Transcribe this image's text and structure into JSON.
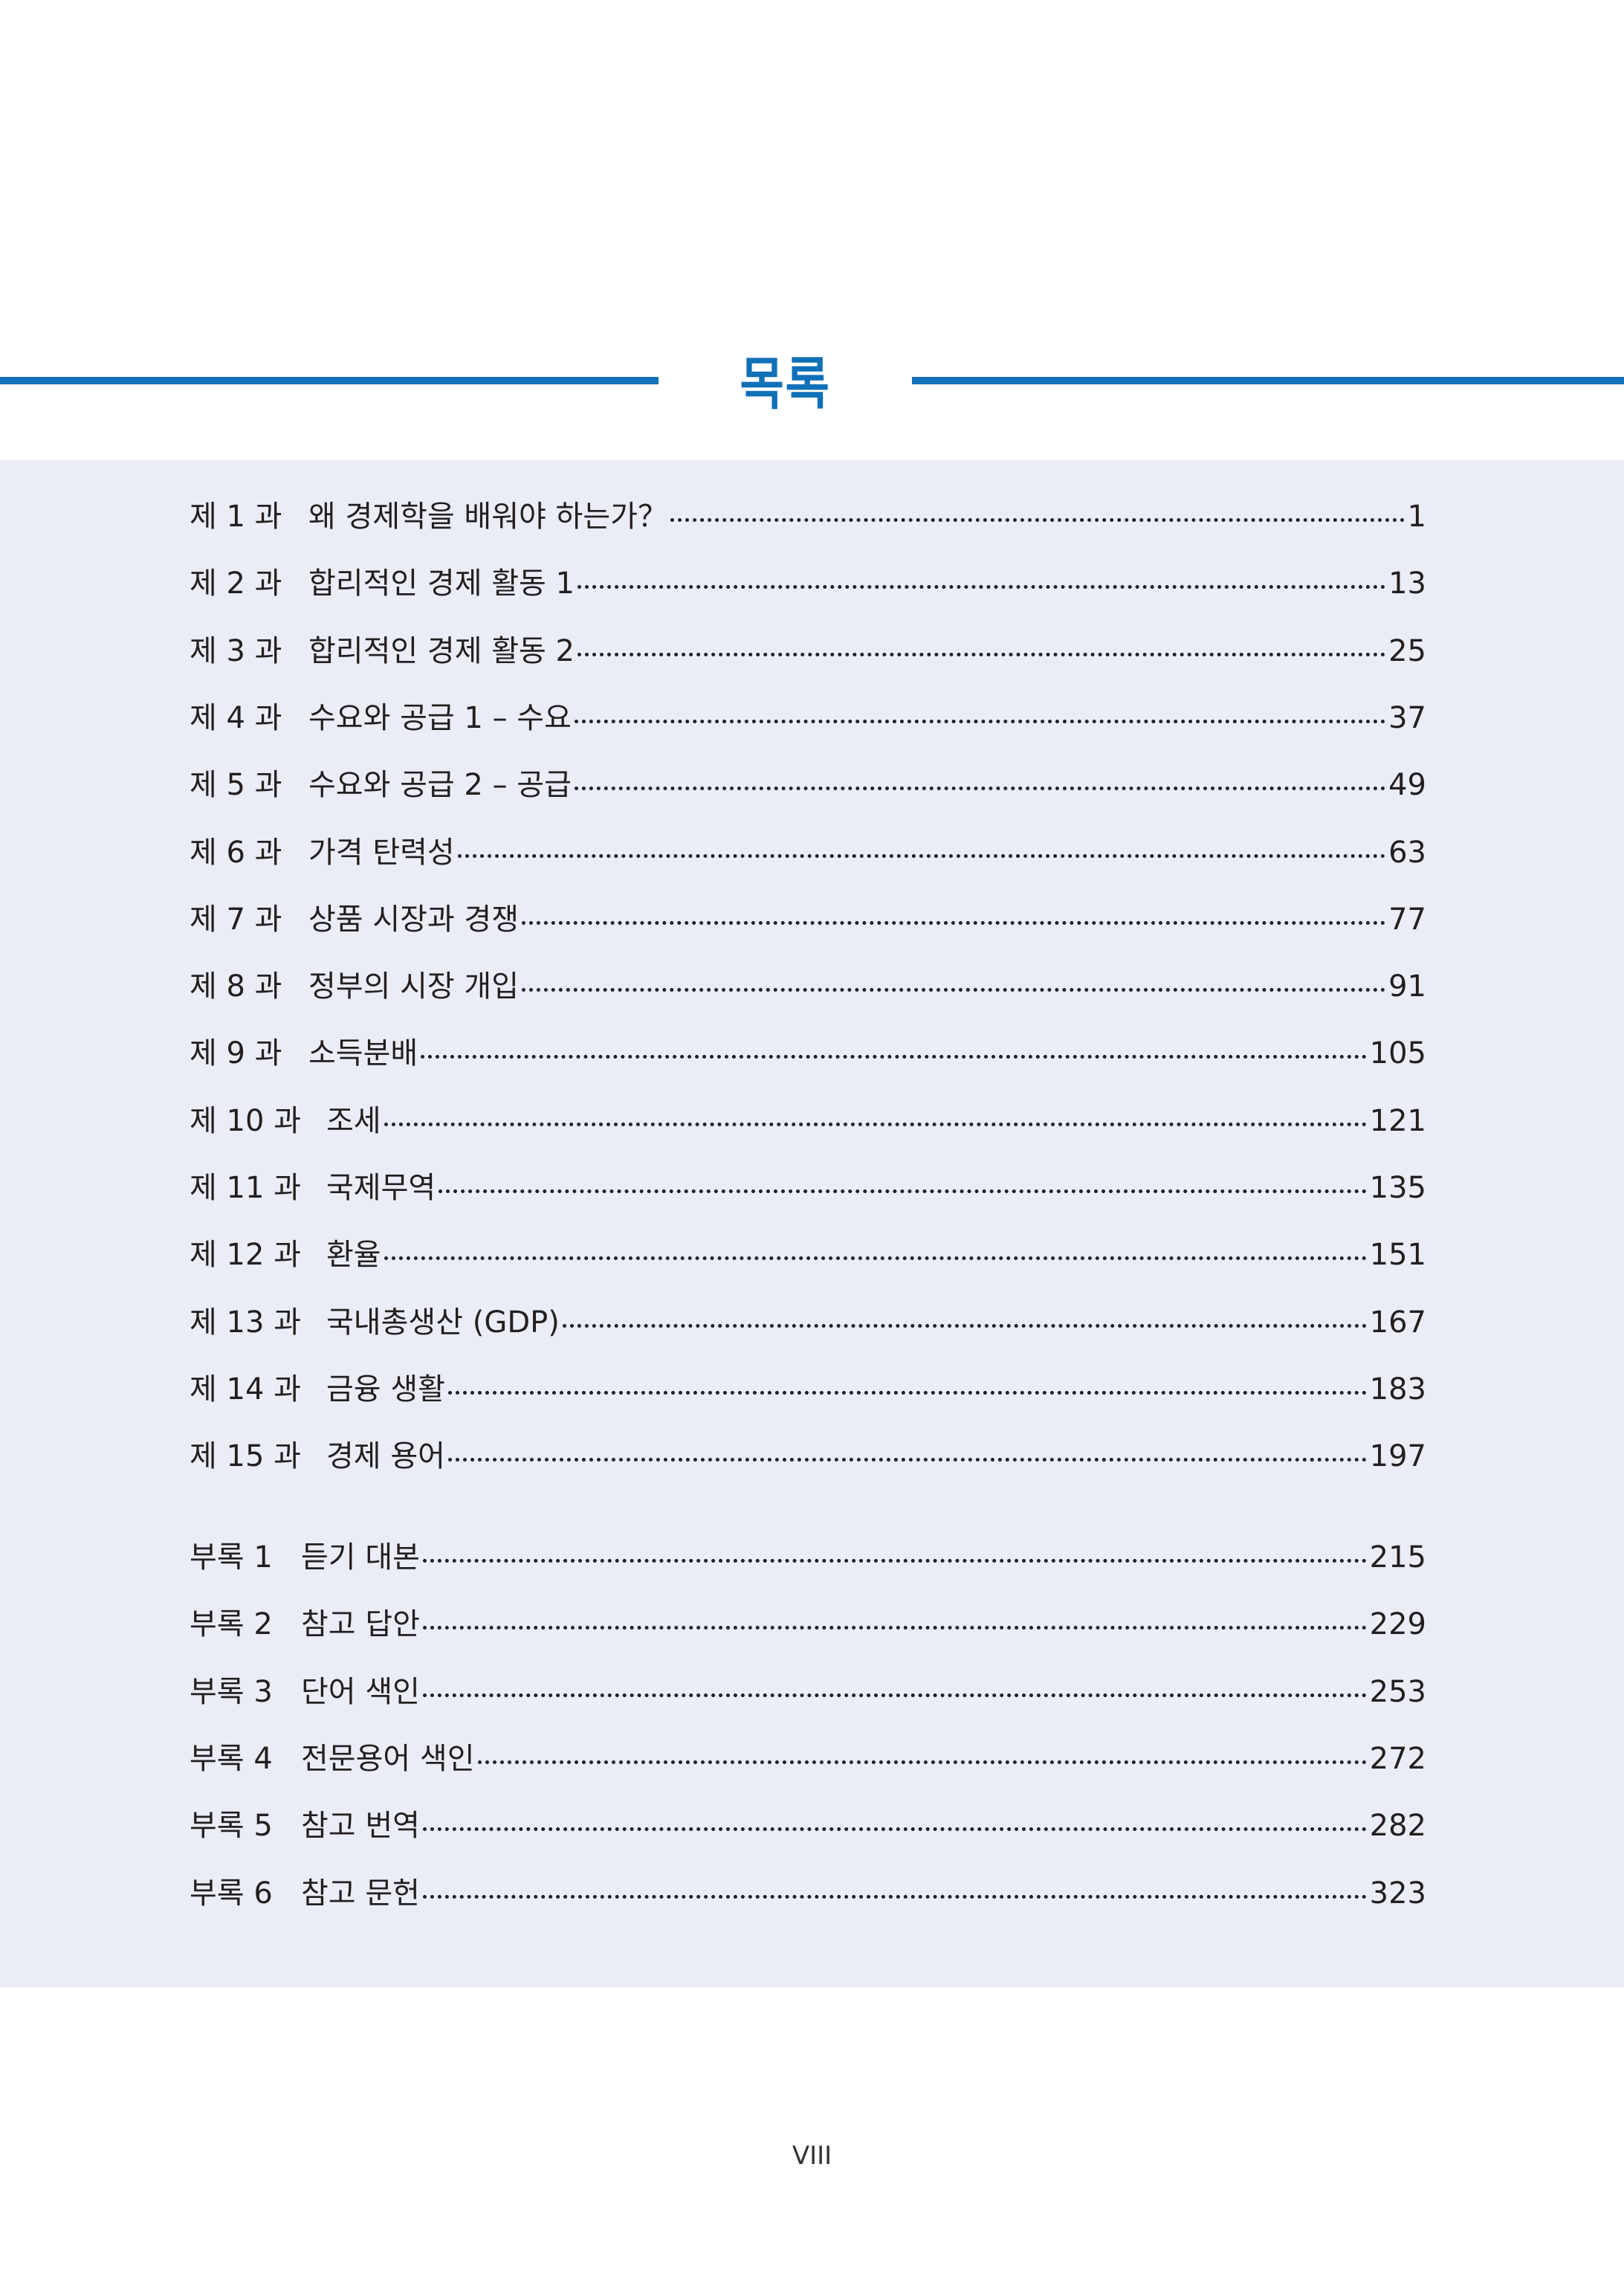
{
  "header": {
    "title": "목록"
  },
  "chapters": [
    {
      "label": "제 1 과",
      "title": "왜 경제학을 배워야 하는가？",
      "page": "1"
    },
    {
      "label": "제 2 과",
      "title": "합리적인 경제 활동 1",
      "page": "13"
    },
    {
      "label": "제 3 과",
      "title": "합리적인 경제 활동 2",
      "page": "25"
    },
    {
      "label": "제 4 과",
      "title": "수요와 공급 1 – 수요",
      "page": "37"
    },
    {
      "label": "제 5 과",
      "title": "수요와 공급 2 – 공급",
      "page": "49"
    },
    {
      "label": "제 6 과",
      "title": "가격 탄력성",
      "page": "63"
    },
    {
      "label": "제 7 과",
      "title": "상품 시장과 경쟁",
      "page": "77"
    },
    {
      "label": "제 8 과",
      "title": "정부의 시장 개입",
      "page": "91"
    },
    {
      "label": "제 9 과",
      "title": "소득분배",
      "page": "105"
    },
    {
      "label": "제 10 과",
      "title": "조세",
      "page": "121"
    },
    {
      "label": "제 11 과",
      "title": "국제무역",
      "page": "135"
    },
    {
      "label": "제 12 과",
      "title": "환율",
      "page": "151"
    },
    {
      "label": "제 13 과",
      "title": "국내총생산 (GDP)",
      "page": "167"
    },
    {
      "label": "제 14 과",
      "title": "금융 생활",
      "page": "183"
    },
    {
      "label": "제 15 과",
      "title": "경제 용어",
      "page": "197"
    }
  ],
  "appendices": [
    {
      "label": "부록 1",
      "title": "듣기 대본",
      "page": "215"
    },
    {
      "label": "부록 2",
      "title": "참고 답안",
      "page": "229"
    },
    {
      "label": "부록 3",
      "title": "단어 색인",
      "page": "253"
    },
    {
      "label": "부록 4",
      "title": "전문용어 색인",
      "page": "272"
    },
    {
      "label": "부록 5",
      "title": "참고 번역",
      "page": "282"
    },
    {
      "label": "부록 6",
      "title": "참고 문헌",
      "page": "323"
    }
  ],
  "footer": {
    "page_number": "VIII"
  },
  "colors": {
    "accent": "#1070b8",
    "panel": "#eaedf6",
    "text": "#231f20"
  }
}
